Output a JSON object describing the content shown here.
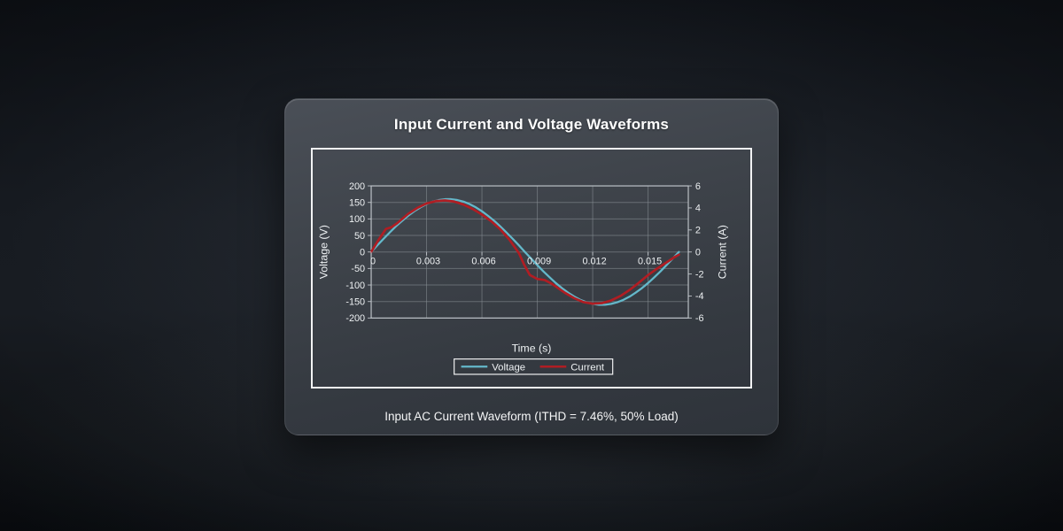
{
  "card": {
    "title": "Input Current and Voltage Waveforms",
    "caption": "Input AC Current Waveform (ITHD = 7.46%, 50% Load)"
  },
  "colors": {
    "voltage_line": "#64b8ca",
    "current_line": "#b01d23",
    "grid": "#8b9197",
    "plot_border": "#c2c7cc",
    "frame_border": "#f2f3f4",
    "text": "#eef1f3"
  },
  "chart_data": {
    "type": "line",
    "title": "Input Current and Voltage Waveforms",
    "xlabel": "Time (s)",
    "ylabel_left": "Voltage (V)",
    "ylabel_right": "Current (A)",
    "xlim": [
      0,
      0.01718
    ],
    "ylim_left": [
      -200,
      200
    ],
    "ylim_right": [
      -6,
      6
    ],
    "grid": true,
    "legend_position": "bottom",
    "x_ticks": [
      0,
      0.003,
      0.006,
      0.009,
      0.012,
      0.015
    ],
    "x_tick_labels": [
      "0",
      "0.003",
      "0.006",
      "0.009",
      "0.012",
      "0.015"
    ],
    "y_left_ticks": [
      200,
      150,
      100,
      50,
      0,
      -50,
      -100,
      -150,
      -200
    ],
    "y_left_tick_labels": [
      "200",
      "150",
      "100",
      "50",
      "0",
      "-50",
      "-100",
      "-150",
      "-200"
    ],
    "y_right_ticks": [
      6,
      4,
      2,
      0,
      -2,
      -4,
      -6
    ],
    "y_right_tick_labels": [
      "6",
      "4",
      "2",
      "0",
      "-2",
      "-4",
      "-6"
    ],
    "series": [
      {
        "name": "Voltage",
        "axis": "left",
        "color": "#64b8ca",
        "unit": "V",
        "t": [
          0,
          0.00033,
          0.00067,
          0.001,
          0.00133,
          0.00167,
          0.002,
          0.00233,
          0.00267,
          0.003,
          0.00333,
          0.00367,
          0.004,
          0.00433,
          0.00467,
          0.005,
          0.00533,
          0.00567,
          0.006,
          0.00633,
          0.00667,
          0.007,
          0.00733,
          0.00767,
          0.008,
          0.00833,
          0.00867,
          0.009,
          0.00933,
          0.00967,
          0.01,
          0.01033,
          0.01067,
          0.011,
          0.01133,
          0.01167,
          0.012,
          0.01233,
          0.01267,
          0.013,
          0.01333,
          0.01367,
          0.014,
          0.01433,
          0.01467,
          0.015,
          0.01533,
          0.01567,
          0.016,
          0.01633,
          0.01667
        ],
        "values": [
          0,
          20.1,
          39.8,
          58.9,
          77.1,
          94,
          109.5,
          123.3,
          135.1,
          144.8,
          152.2,
          157.2,
          159.7,
          159.7,
          157.2,
          152.2,
          144.8,
          135.1,
          123.3,
          109.5,
          94,
          77.1,
          58.9,
          39.8,
          20.1,
          0,
          -20.1,
          -39.8,
          -58.9,
          -77.1,
          -94,
          -109.5,
          -123.3,
          -135.1,
          -144.8,
          -152.2,
          -157.2,
          -159.7,
          -159.7,
          -157.2,
          -152.2,
          -144.8,
          -135.1,
          -123.3,
          -109.5,
          -94,
          -77.1,
          -58.9,
          -39.8,
          -20.1,
          0
        ]
      },
      {
        "name": "Current",
        "axis": "right",
        "color": "#b01d23",
        "unit": "A",
        "t": [
          0,
          0.0004,
          0.0008,
          0.0011,
          0.0014,
          0.002,
          0.0025,
          0.003,
          0.0035,
          0.004,
          0.0045,
          0.005,
          0.0055,
          0.006,
          0.0065,
          0.007,
          0.0075,
          0.008,
          0.0083,
          0.0086,
          0.009,
          0.0094,
          0.0098,
          0.0105,
          0.011,
          0.0115,
          0.012,
          0.0125,
          0.013,
          0.0135,
          0.014,
          0.0145,
          0.015,
          0.0155,
          0.016,
          0.0164,
          0.01667
        ],
        "values": [
          0,
          1.1,
          2.1,
          2.25,
          2.6,
          3.45,
          4.0,
          4.4,
          4.62,
          4.68,
          4.58,
          4.3,
          3.9,
          3.4,
          2.8,
          2.05,
          1.1,
          -0.1,
          -1.2,
          -2.1,
          -2.45,
          -2.55,
          -2.9,
          -3.7,
          -4.2,
          -4.55,
          -4.7,
          -4.65,
          -4.4,
          -4.0,
          -3.45,
          -2.8,
          -2.1,
          -1.5,
          -0.95,
          -0.5,
          -0.25
        ]
      }
    ]
  }
}
